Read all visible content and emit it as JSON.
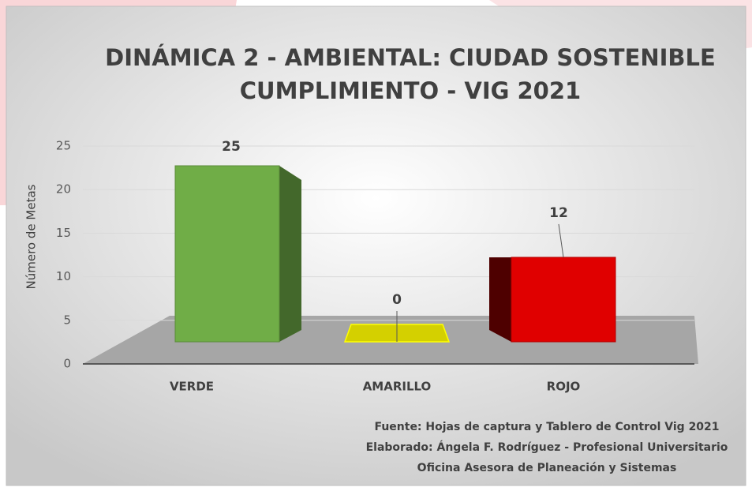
{
  "chart_data": {
    "type": "bar3d",
    "title": [
      "DINÁMICA 2 - AMBIENTAL: CIUDAD SOSTENIBLE",
      "CUMPLIMIENTO - VIG 2021"
    ],
    "y_label": "Número de Metas",
    "categories": [
      "VERDE",
      "AMARILLO",
      "ROJO"
    ],
    "values": [
      25,
      0,
      12
    ],
    "colors": [
      "#70ad47",
      "#d4d000",
      "#e00000"
    ],
    "ylim": [
      0,
      25
    ],
    "yticks": [
      0,
      5,
      10,
      15,
      20,
      25
    ],
    "grid": true,
    "notes": [
      "Fuente: Hojas de captura y Tablero de Control Vig 2021",
      "Elaborado: Ángela F. Rodríguez - Profesional Universitario",
      "Oficina Asesora de Planeación y Sistemas"
    ]
  }
}
